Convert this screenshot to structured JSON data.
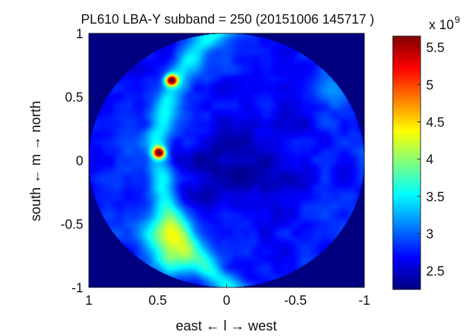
{
  "chart_data": {
    "type": "heatmap",
    "title": "PL610 LBA-Y subband = 250 (20151006 145717 )",
    "xlabel": "east ← l → west",
    "ylabel": "south ← m → north",
    "xlim": [
      1,
      -1
    ],
    "ylim": [
      -1,
      1
    ],
    "x_ticks": [
      1,
      0.5,
      0,
      -0.5,
      -1
    ],
    "x_tick_labels": [
      "1",
      "0.5",
      "0",
      "-0.5",
      "-1"
    ],
    "y_ticks": [
      1,
      0.5,
      0,
      -0.5,
      -1
    ],
    "y_tick_labels": [
      "1",
      "0.5",
      "0",
      "-0.5",
      "-1"
    ],
    "colorbar": {
      "min": 2.25,
      "max": 5.65,
      "ticks": [
        5.5,
        5,
        4.5,
        4,
        3.5,
        3,
        2.5
      ],
      "tick_labels": [
        "5.5",
        "5",
        "4.5",
        "4",
        "3.5",
        "3",
        "2.5"
      ],
      "multiplier_label": "x 10",
      "multiplier_exponent": "9",
      "colormap": "jet"
    },
    "background_value": 2.25,
    "sky_radius": 1.0,
    "sky_base_value": 2.75,
    "features": [
      {
        "kind": "source",
        "name": "hot spot upper",
        "l": 0.4,
        "m": 0.63,
        "peak": 5.6,
        "sigma": 0.03
      },
      {
        "kind": "source",
        "name": "hot spot middle",
        "l": 0.49,
        "m": 0.06,
        "peak": 5.6,
        "sigma": 0.03
      },
      {
        "kind": "band",
        "name": "galactic plane arc",
        "centre_l": -0.8,
        "centre_m": 0.05,
        "radius": 1.3,
        "amplitude": 0.75,
        "width": 0.07
      },
      {
        "kind": "blob",
        "name": "lower plane emission",
        "l": 0.45,
        "m": -0.6,
        "peak": 0.95,
        "sigma": 0.12
      },
      {
        "kind": "blob",
        "name": "lower plane emission 2",
        "l": 0.38,
        "m": -0.78,
        "peak": 0.8,
        "sigma": 0.1
      },
      {
        "kind": "blob",
        "name": "rim brightening",
        "l": -0.75,
        "m": 0.55,
        "peak": 0.55,
        "sigma": 0.1
      },
      {
        "kind": "blob",
        "name": "central dip",
        "l": -0.1,
        "m": 0.0,
        "peak": -0.35,
        "sigma": 0.3
      }
    ]
  }
}
